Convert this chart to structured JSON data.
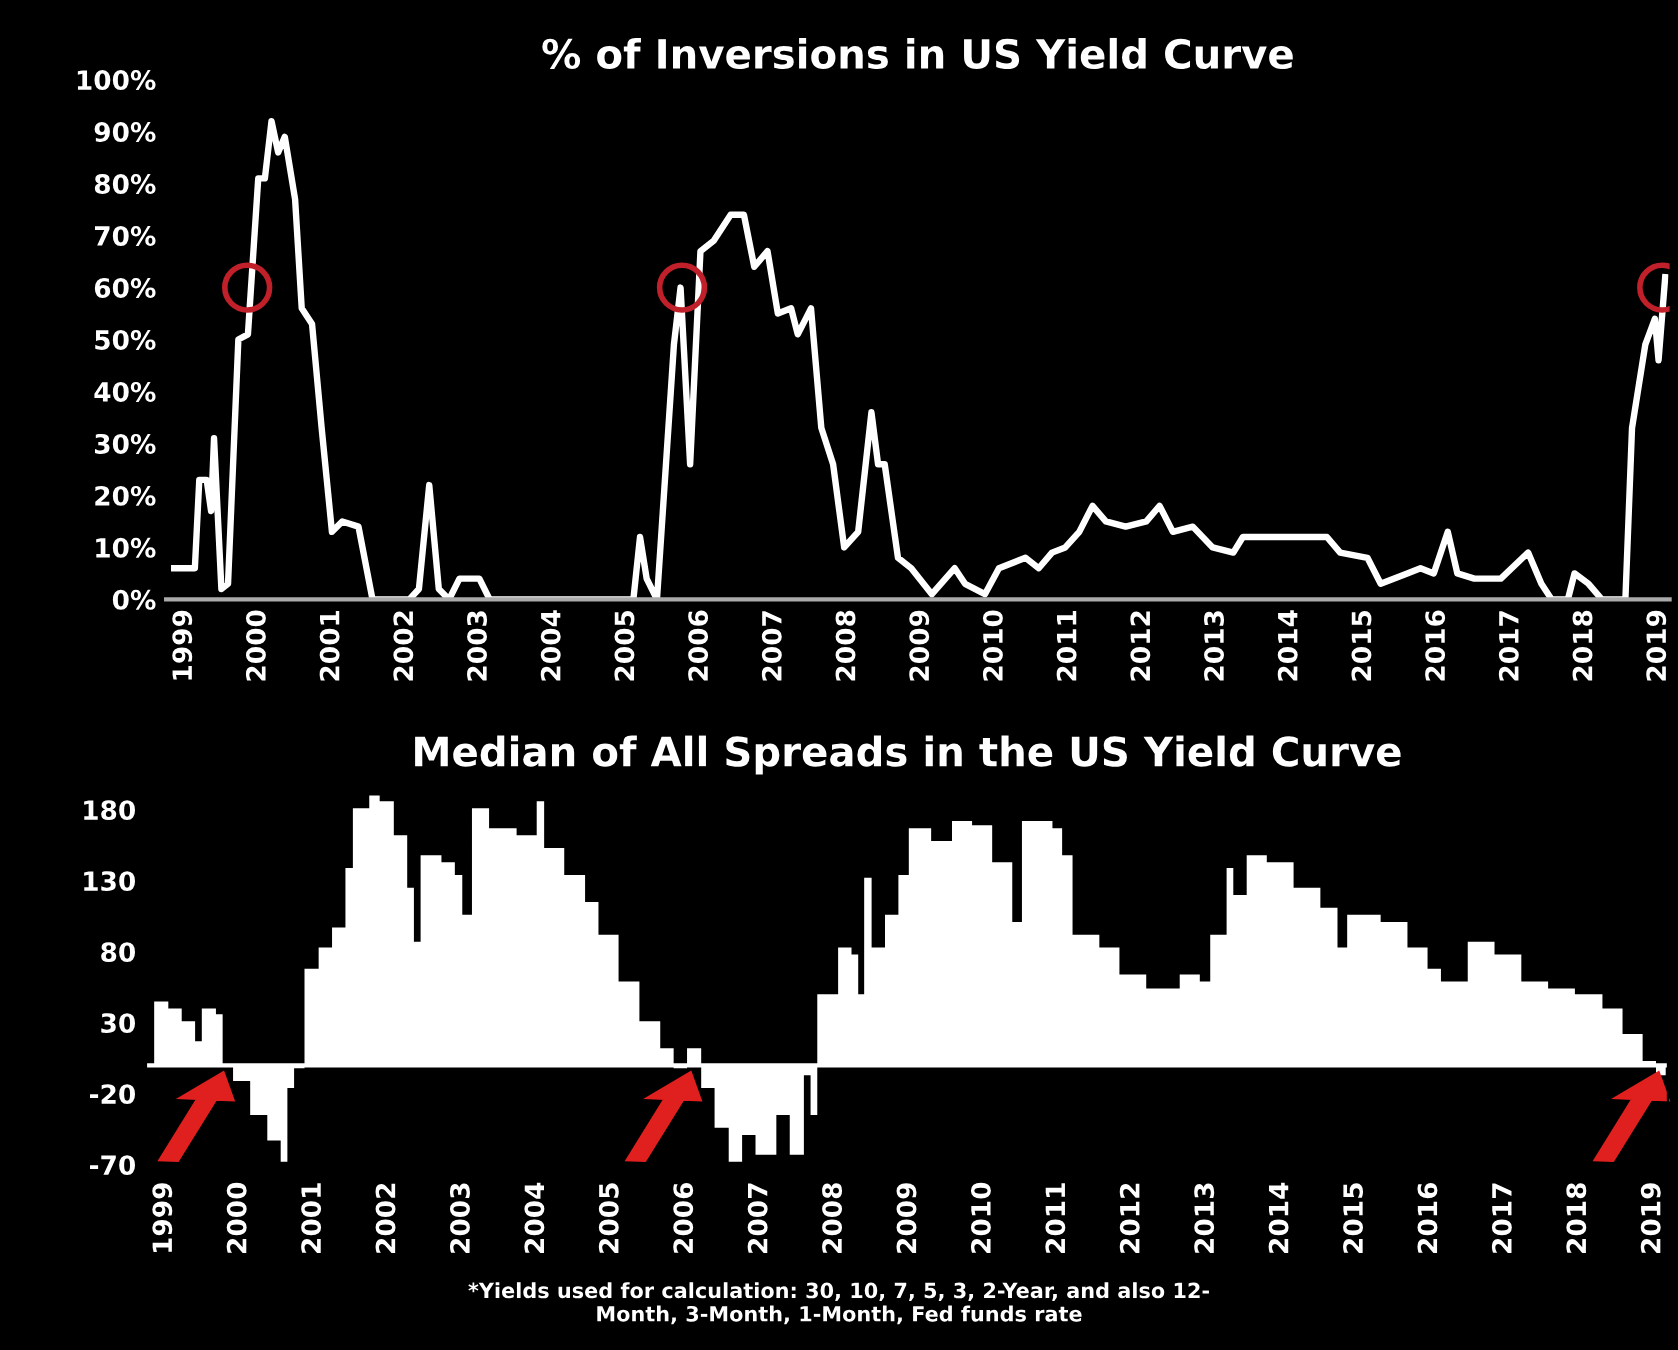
{
  "chart_data": [
    {
      "type": "line",
      "title": "% of Inversions in US Yield Curve",
      "xlim": [
        1998.75,
        2019.15
      ],
      "xticks": [
        1999,
        2000,
        2001,
        2002,
        2003,
        2004,
        2005,
        2006,
        2007,
        2008,
        2009,
        2010,
        2011,
        2012,
        2013,
        2014,
        2015,
        2016,
        2017,
        2018,
        2019
      ],
      "ylim": [
        0,
        100
      ],
      "yticks": [
        {
          "value": 0,
          "label": "0%"
        },
        {
          "value": 10,
          "label": "10%"
        },
        {
          "value": 20,
          "label": "20%"
        },
        {
          "value": 30,
          "label": "30%"
        },
        {
          "value": 40,
          "label": "40%"
        },
        {
          "value": 50,
          "label": "50%"
        },
        {
          "value": 60,
          "label": "60%"
        },
        {
          "value": 70,
          "label": "70%"
        },
        {
          "value": 80,
          "label": "80%"
        },
        {
          "value": 90,
          "label": "90%"
        },
        {
          "value": 100,
          "label": "100%"
        }
      ],
      "grid": false,
      "legend": false,
      "series": [
        {
          "color": "#ffffff",
          "x": [
            1998.86,
            1999.14,
            1999.2,
            1999.3,
            1999.36,
            1999.4,
            1999.5,
            1999.59,
            1999.73,
            1999.86,
            2000.0,
            2000.09,
            2000.18,
            2000.27,
            2000.36,
            2000.5,
            2000.59,
            2000.73,
            2000.86,
            2001.0,
            2001.14,
            2001.36,
            2001.55,
            2002.05,
            2002.18,
            2002.32,
            2002.45,
            2002.59,
            2002.73,
            2003.0,
            2003.14,
            2005.09,
            2005.18,
            2005.27,
            2005.41,
            2005.64,
            2005.73,
            2005.86,
            2006.0,
            2006.18,
            2006.41,
            2006.59,
            2006.73,
            2006.91,
            2007.05,
            2007.23,
            2007.32,
            2007.5,
            2007.64,
            2007.8,
            2007.95,
            2008.14,
            2008.32,
            2008.41,
            2008.5,
            2008.68,
            2008.86,
            2009.14,
            2009.45,
            2009.59,
            2009.86,
            2010.05,
            2010.41,
            2010.59,
            2010.77,
            2010.95,
            2011.14,
            2011.32,
            2011.5,
            2011.77,
            2012.05,
            2012.23,
            2012.41,
            2012.68,
            2012.95,
            2013.23,
            2013.36,
            2014.5,
            2014.68,
            2015.05,
            2015.23,
            2015.59,
            2015.77,
            2015.95,
            2016.14,
            2016.27,
            2016.5,
            2016.86,
            2017.23,
            2017.41,
            2017.55,
            2017.77,
            2017.86,
            2018.05,
            2018.23,
            2018.55,
            2018.64,
            2018.82,
            2018.95,
            2019.0,
            2019.09
          ],
          "values": [
            6,
            6,
            23,
            23,
            17,
            31,
            2,
            3,
            50,
            51,
            81,
            81,
            92,
            86,
            89,
            77,
            56,
            53,
            33,
            13,
            15,
            14,
            0,
            0,
            2,
            22,
            2,
            0,
            4,
            4,
            0,
            0,
            12,
            4,
            0,
            49,
            60,
            26,
            67,
            69,
            74,
            74,
            64,
            67,
            55,
            56,
            51,
            56,
            33,
            26,
            10,
            13,
            36,
            26,
            26,
            8,
            6,
            1,
            6,
            3,
            1,
            6,
            8,
            6,
            9,
            10,
            13,
            18,
            15,
            14,
            15,
            18,
            13,
            14,
            10,
            9,
            12,
            12,
            9,
            8,
            3,
            5,
            6,
            5,
            13,
            5,
            4,
            4,
            9,
            3,
            0,
            0,
            5,
            3,
            0,
            0,
            33,
            49,
            54,
            46,
            62
          ]
        },
        {
          "type": "scatter",
          "color": "#c0202a",
          "marker": "circle",
          "x": [
            1999.85,
            2005.75,
            2019.05
          ],
          "values": [
            60,
            60,
            60
          ]
        }
      ]
    },
    {
      "type": "area",
      "title": "Median of All Spreads in the US Yield Curve",
      "xlim": [
        1998.75,
        2019.2
      ],
      "xticks": [
        1999,
        2000,
        2001,
        2002,
        2003,
        2004,
        2005,
        2006,
        2007,
        2008,
        2009,
        2010,
        2011,
        2012,
        2013,
        2014,
        2015,
        2016,
        2017,
        2018,
        2019
      ],
      "ylim": [
        -75,
        195
      ],
      "yticks": [
        -70,
        -20,
        30,
        80,
        130,
        180
      ],
      "grid": false,
      "legend": false,
      "annotations": [
        "*Yields used for calculation: 30, 10, 7, 5, 3, 2-Year, and also 12-\nMonth, 3-Month, 1-Month, Fed funds rate"
      ],
      "series": [
        {
          "color": "#ffffff",
          "x": [
            1998.86,
            1999.05,
            1999.23,
            1999.37,
            1999.41,
            1999.5,
            1999.69,
            1999.78,
            1999.92,
            2000.15,
            2000.38,
            2000.56,
            2000.65,
            2000.74,
            2000.88,
            2001.07,
            2001.25,
            2001.43,
            2001.53,
            2001.75,
            2001.89,
            2002.08,
            2002.26,
            2002.35,
            2002.44,
            2002.72,
            2002.9,
            2003.0,
            2003.13,
            2003.36,
            2003.73,
            2004.0,
            2004.1,
            2004.37,
            2004.65,
            2004.83,
            2005.1,
            2005.38,
            2005.66,
            2005.84,
            2006.02,
            2006.21,
            2006.39,
            2006.58,
            2006.76,
            2006.94,
            2007.22,
            2007.4,
            2007.59,
            2007.68,
            2007.77,
            2008.05,
            2008.23,
            2008.32,
            2008.4,
            2008.5,
            2008.68,
            2008.86,
            2009.0,
            2009.3,
            2009.58,
            2009.85,
            2010.12,
            2010.39,
            2010.52,
            2010.93,
            2011.06,
            2011.2,
            2011.56,
            2011.83,
            2012.19,
            2012.64,
            2012.91,
            2013.05,
            2013.27,
            2013.36,
            2013.54,
            2013.81,
            2014.17,
            2014.53,
            2014.76,
            2014.89,
            2015.34,
            2015.7,
            2015.97,
            2016.15,
            2016.51,
            2016.87,
            2017.23,
            2017.59,
            2017.95,
            2018.32,
            2018.59,
            2018.86,
            2019.04,
            2019.17
          ],
          "values": [
            45,
            40,
            31,
            31,
            17,
            40,
            36,
            0,
            -11,
            -35,
            -53,
            -68,
            -16,
            -2,
            68,
            83,
            97,
            139,
            181,
            190,
            186,
            162,
            125,
            87,
            148,
            143,
            134,
            106,
            181,
            167,
            162,
            186,
            153,
            134,
            115,
            92,
            59,
            31,
            12,
            -2,
            12,
            -16,
            -44,
            -68,
            -49,
            -63,
            -35,
            -63,
            -7,
            -35,
            50,
            83,
            78,
            50,
            132,
            83,
            106,
            134,
            167,
            158,
            172,
            169,
            143,
            101,
            172,
            167,
            148,
            92,
            83,
            64,
            54,
            64,
            59,
            92,
            139,
            120,
            148,
            143,
            125,
            111,
            83,
            106,
            101,
            83,
            68,
            59,
            87,
            78,
            59,
            54,
            50,
            40,
            22,
            3,
            -7,
            -11
          ]
        }
      ]
    }
  ]
}
